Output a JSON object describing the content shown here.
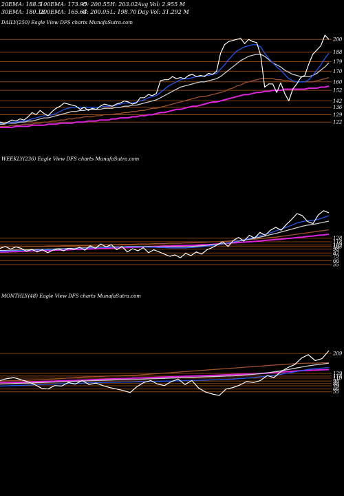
{
  "header": {
    "ema20": "20EMA: 188.5",
    "ema100": "100EMA: 173.95",
    "open": "O: 200.55",
    "high": "H: 203.02",
    "avgvol": "Avg Vol: 2.955  M",
    "ema30": "30EMA: 180.18",
    "ema200": "200EMA: 165.64",
    "close": "C: 200.05",
    "low": "L: 198.70",
    "dayvol": "Day Vol: 31.292  M"
  },
  "colors": {
    "background": "#000000",
    "price": "#ffffff",
    "ema_fast": "#2255ee",
    "ema_long": "#dd22dd",
    "ema_mid": "#cccccc",
    "ema_brown": "#a0522d",
    "level": "#8b4513"
  },
  "chart_data": [
    {
      "type": "line",
      "title": "DAILY(250) Eagle  View  DFS charts MunafaSutra.com",
      "ylim": [
        115,
        206
      ],
      "levels": [
        200,
        188,
        179,
        170,
        160,
        152,
        142,
        136,
        129,
        122
      ],
      "series": [
        {
          "color": "#ffffff",
          "values": [
            122,
            121,
            122,
            124,
            123,
            125,
            124,
            127,
            131,
            129,
            133,
            130,
            128,
            132,
            135,
            137,
            140,
            139,
            138,
            137,
            134,
            136,
            133,
            135,
            134,
            137,
            139,
            138,
            137,
            139,
            140,
            142,
            141,
            139,
            140,
            145,
            145,
            148,
            147,
            149,
            161,
            162,
            162,
            165,
            163,
            164,
            163,
            166,
            167,
            165,
            166,
            165,
            168,
            167,
            170,
            187,
            195,
            198,
            199,
            200,
            201,
            196,
            200,
            198,
            197,
            185,
            155,
            158,
            158,
            150,
            159,
            149,
            142,
            153,
            158,
            164,
            166,
            177,
            186,
            190,
            194,
            204,
            200
          ]
        },
        {
          "color": "#2255ee",
          "values": [
            121,
            121,
            121,
            122,
            122,
            123,
            123,
            124,
            125,
            126,
            127,
            128,
            128,
            129,
            130,
            132,
            134,
            135,
            136,
            136,
            136,
            136,
            136,
            136,
            136,
            136,
            137,
            137,
            137,
            138,
            139,
            140,
            140,
            140,
            141,
            142,
            143,
            145,
            146,
            147,
            150,
            153,
            156,
            158,
            160,
            162,
            163,
            163,
            164,
            165,
            165,
            166,
            166,
            167,
            168,
            172,
            176,
            181,
            185,
            189,
            191,
            193,
            194,
            195,
            195,
            193,
            187,
            182,
            178,
            174,
            171,
            167,
            163,
            161,
            160,
            160,
            160,
            162,
            166,
            171,
            176,
            182,
            187
          ]
        },
        {
          "color": "#cccccc",
          "values": [
            120,
            120,
            121,
            121,
            121,
            122,
            122,
            123,
            123,
            124,
            125,
            126,
            126,
            127,
            128,
            129,
            130,
            131,
            132,
            132,
            133,
            133,
            134,
            134,
            134,
            134,
            135,
            135,
            135,
            136,
            136,
            137,
            137,
            138,
            138,
            139,
            140,
            141,
            142,
            143,
            145,
            147,
            149,
            151,
            153,
            155,
            156,
            157,
            158,
            159,
            160,
            160,
            161,
            162,
            163,
            165,
            168,
            171,
            174,
            177,
            180,
            182,
            184,
            185,
            186,
            186,
            184,
            181,
            178,
            176,
            174,
            171,
            169,
            167,
            166,
            165,
            165,
            165,
            166,
            168,
            171,
            174,
            178
          ]
        },
        {
          "color": "#a0522d",
          "values": [
            118,
            118,
            118,
            119,
            119,
            119,
            120,
            120,
            120,
            121,
            121,
            122,
            122,
            123,
            123,
            124,
            124,
            125,
            125,
            126,
            126,
            127,
            127,
            127,
            128,
            128,
            129,
            129,
            129,
            130,
            130,
            131,
            131,
            132,
            132,
            133,
            133,
            134,
            135,
            135,
            136,
            137,
            138,
            139,
            140,
            141,
            142,
            143,
            144,
            145,
            146,
            146,
            147,
            148,
            149,
            150,
            151,
            153,
            154,
            156,
            157,
            159,
            160,
            161,
            162,
            163,
            163,
            163,
            163,
            162,
            162,
            161,
            161,
            160,
            160,
            160,
            160,
            160,
            160,
            161,
            162,
            163,
            164
          ]
        },
        {
          "color": "#dd22dd",
          "values": [
            117,
            117,
            117,
            117,
            118,
            118,
            118,
            118,
            119,
            119,
            119,
            119,
            120,
            120,
            120,
            121,
            121,
            121,
            121,
            122,
            122,
            122,
            123,
            123,
            123,
            124,
            124,
            124,
            125,
            125,
            126,
            126,
            126,
            127,
            127,
            128,
            128,
            129,
            129,
            130,
            131,
            131,
            132,
            133,
            134,
            134,
            135,
            136,
            137,
            137,
            138,
            139,
            140,
            141,
            141,
            142,
            143,
            144,
            145,
            146,
            147,
            148,
            148,
            149,
            150,
            150,
            151,
            151,
            152,
            152,
            152,
            153,
            153,
            153,
            153,
            153,
            153,
            154,
            154,
            154,
            155,
            155,
            156
          ]
        }
      ]
    },
    {
      "type": "line",
      "title": "WEEKLY(236) Eagle  View  DFS charts MunafaSutra.com",
      "ylim": [
        40,
        215
      ],
      "levels": [
        128,
        118,
        109,
        105,
        98,
        87,
        79,
        66,
        55
      ],
      "series": [
        {
          "color": "#ffffff",
          "values": [
            100,
            105,
            98,
            104,
            100,
            92,
            97,
            90,
            96,
            88,
            95,
            98,
            93,
            100,
            97,
            103,
            95,
            107,
            100,
            112,
            104,
            110,
            96,
            105,
            90,
            99,
            93,
            102,
            88,
            96,
            90,
            84,
            78,
            82,
            74,
            86,
            80,
            90,
            84,
            96,
            102,
            110,
            118,
            105,
            122,
            130,
            120,
            136,
            128,
            144,
            136,
            150,
            158,
            150,
            166,
            180,
            196,
            190,
            174,
            168,
            192,
            204,
            198
          ]
        },
        {
          "color": "#2255ee",
          "values": [
            92,
            92,
            93,
            93,
            94,
            94,
            95,
            95,
            96,
            96,
            97,
            97,
            98,
            98,
            99,
            100,
            100,
            101,
            101,
            102,
            102,
            103,
            103,
            104,
            104,
            104,
            104,
            104,
            103,
            103,
            102,
            102,
            101,
            101,
            101,
            101,
            102,
            103,
            104,
            106,
            108,
            110,
            112,
            115,
            118,
            121,
            124,
            127,
            131,
            135,
            139,
            143,
            148,
            153,
            158,
            164,
            170,
            174,
            176,
            177,
            180,
            185,
            190
          ]
        },
        {
          "color": "#cccccc",
          "values": [
            94,
            94,
            95,
            95,
            95,
            96,
            96,
            97,
            97,
            98,
            98,
            99,
            99,
            100,
            100,
            101,
            101,
            102,
            102,
            103,
            103,
            104,
            104,
            104,
            105,
            105,
            105,
            105,
            105,
            104,
            104,
            104,
            104,
            104,
            104,
            104,
            105,
            106,
            107,
            108,
            110,
            111,
            113,
            115,
            117,
            120,
            122,
            125,
            128,
            131,
            134,
            138,
            141,
            145,
            149,
            153,
            157,
            161,
            164,
            166,
            169,
            172,
            175
          ]
        },
        {
          "color": "#a0522d",
          "values": [
            104,
            104,
            104,
            104,
            104,
            105,
            105,
            105,
            105,
            106,
            106,
            106,
            107,
            107,
            107,
            108,
            108,
            108,
            109,
            109,
            110,
            110,
            110,
            111,
            111,
            111,
            112,
            112,
            112,
            113,
            113,
            113,
            114,
            114,
            114,
            115,
            115,
            116,
            116,
            117,
            118,
            118,
            119,
            120,
            121,
            122,
            123,
            124,
            125,
            127,
            128,
            130,
            131,
            133,
            135,
            137,
            139,
            141,
            143,
            145,
            147,
            149,
            151
          ]
        },
        {
          "color": "#dd22dd",
          "values": [
            90,
            90,
            91,
            91,
            92,
            92,
            93,
            93,
            94,
            94,
            95,
            95,
            96,
            96,
            97,
            97,
            98,
            98,
            99,
            100,
            100,
            101,
            101,
            102,
            102,
            103,
            103,
            104,
            104,
            105,
            105,
            106,
            106,
            107,
            107,
            108,
            108,
            109,
            110,
            110,
            111,
            112,
            113,
            114,
            115,
            116,
            117,
            118,
            119,
            120,
            122,
            123,
            124,
            125,
            127,
            128,
            130,
            131,
            133,
            134,
            136,
            137,
            139
          ]
        }
      ]
    },
    {
      "type": "line",
      "title": "MONTHLY(48) Eagle  View  DFS charts MunafaSutra.com",
      "ylim": [
        10,
        245
      ],
      "levels": [
        209,
        129,
        118,
        110,
        98,
        88,
        79,
        66,
        55
      ],
      "series": [
        {
          "color": "#ffffff",
          "values": [
            100,
            108,
            112,
            104,
            96,
            85,
            70,
            66,
            80,
            78,
            92,
            86,
            100,
            84,
            90,
            80,
            72,
            66,
            60,
            52,
            76,
            92,
            100,
            86,
            80,
            96,
            106,
            84,
            100,
            70,
            54,
            46,
            40,
            66,
            72,
            82,
            96,
            92,
            100,
            120,
            112,
            136,
            152,
            164,
            190,
            204,
            180,
            188,
            220
          ]
        },
        {
          "color": "#2255ee",
          "values": [
            78,
            79,
            80,
            81,
            82,
            83,
            84,
            85,
            86,
            87,
            88,
            89,
            90,
            91,
            92,
            92,
            93,
            93,
            94,
            94,
            95,
            96,
            96,
            97,
            98,
            98,
            99,
            100,
            101,
            101,
            102,
            103,
            104,
            105,
            106,
            108,
            110,
            112,
            115,
            118,
            121,
            125,
            130,
            135,
            140,
            145,
            148,
            150,
            152
          ]
        },
        {
          "color": "#cccccc",
          "values": [
            86,
            87,
            88,
            89,
            90,
            91,
            92,
            93,
            94,
            95,
            96,
            97,
            98,
            99,
            100,
            101,
            102,
            103,
            104,
            104,
            105,
            106,
            107,
            108,
            109,
            110,
            111,
            112,
            113,
            114,
            115,
            116,
            117,
            118,
            119,
            121,
            123,
            125,
            128,
            131,
            135,
            139,
            144,
            149,
            154,
            159,
            163,
            166,
            170
          ]
        },
        {
          "color": "#a0522d",
          "values": [
            98,
            99,
            100,
            101,
            102,
            103,
            104,
            105,
            106,
            108,
            110,
            112,
            114,
            115,
            116,
            117,
            118,
            119,
            120,
            121,
            122,
            124,
            126,
            128,
            130,
            132,
            134,
            136,
            138,
            140,
            142,
            144,
            146,
            148,
            150,
            152,
            154,
            156,
            158,
            160,
            162,
            164,
            166,
            168,
            169,
            170,
            170,
            171,
            172
          ]
        },
        {
          "color": "#dd22dd",
          "values": [
            92,
            92,
            93,
            93,
            94,
            95,
            96,
            97,
            98,
            99,
            100,
            101,
            102,
            103,
            104,
            105,
            106,
            107,
            108,
            109,
            110,
            111,
            112,
            113,
            114,
            115,
            116,
            117,
            118,
            119,
            120,
            121,
            122,
            123,
            124,
            125,
            126,
            127,
            128,
            130,
            132,
            134,
            136,
            138,
            140,
            141,
            142,
            143,
            144
          ]
        }
      ]
    }
  ]
}
